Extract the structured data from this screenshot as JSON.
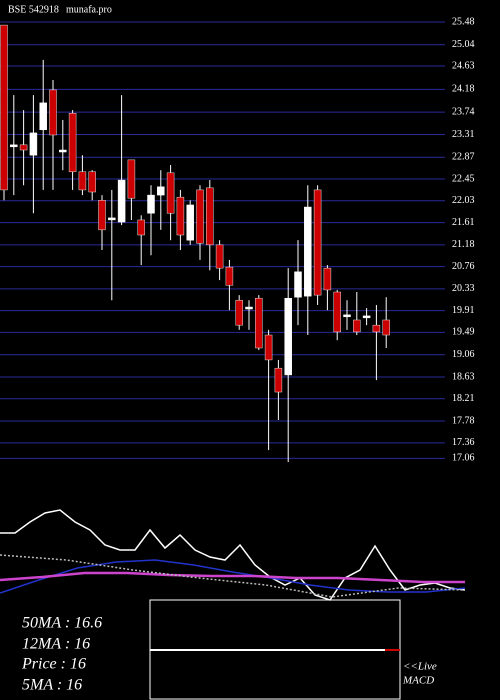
{
  "header": {
    "title": "BSE 542918",
    "site": "munafa.pro"
  },
  "chart_data": [
    {
      "type": "candlestick",
      "ylim": [
        16.99,
        25.48
      ],
      "yticks": [
        25.48,
        25.04,
        24.63,
        24.18,
        23.74,
        23.31,
        22.87,
        22.45,
        22.03,
        21.61,
        21.18,
        20.76,
        20.33,
        19.91,
        19.49,
        19.06,
        18.63,
        18.21,
        17.78,
        17.36,
        17.06
      ],
      "grid": true,
      "up_color": "#ffffff",
      "down_color": "#cc0000",
      "grid_color": "#2a2a9a",
      "open": [
        25.42,
        23.11,
        23.11,
        22.91,
        23.4,
        24.17,
        23.01,
        23.72,
        22.59,
        22.59,
        22.04,
        21.7,
        21.62,
        22.82,
        21.66,
        21.79,
        22.14,
        22.57,
        22.1,
        21.27,
        22.24,
        22.28,
        21.18,
        20.75,
        20.11,
        19.98,
        20.15,
        19.44,
        18.8,
        18.67,
        20.17,
        20.19,
        22.24,
        20.73,
        20.27,
        19.83,
        19.73,
        19.81,
        19.63,
        19.73
      ],
      "high": [
        25.42,
        24.07,
        23.78,
        24.07,
        24.75,
        24.36,
        23.59,
        23.78,
        22.91,
        22.62,
        22.14,
        22.24,
        24.07,
        22.82,
        21.75,
        22.33,
        22.62,
        22.72,
        22.24,
        22.04,
        22.33,
        22.43,
        21.27,
        20.89,
        20.21,
        20.11,
        20.21,
        19.54,
        18.96,
        20.73,
        21.27,
        22.33,
        22.33,
        20.79,
        20.31,
        20.11,
        20.27,
        19.96,
        20.02,
        20.17
      ],
      "low": [
        22.04,
        22.14,
        22.33,
        21.79,
        22.24,
        22.24,
        22.62,
        22.24,
        22.14,
        22.04,
        21.08,
        20.11,
        21.56,
        21.66,
        20.79,
        20.98,
        21.47,
        21.27,
        21.08,
        21.18,
        20.89,
        20.69,
        20.5,
        19.92,
        19.54,
        19.54,
        19.15,
        17.22,
        17.8,
        16.99,
        19.63,
        19.44,
        20.02,
        19.92,
        19.34,
        19.54,
        19.44,
        19.63,
        18.57,
        19.19
      ],
      "close": [
        22.24,
        23.11,
        23.01,
        23.34,
        23.92,
        23.3,
        23.01,
        22.59,
        22.24,
        22.2,
        21.47,
        21.7,
        22.43,
        22.08,
        21.37,
        22.14,
        22.3,
        21.79,
        21.37,
        21.95,
        21.21,
        21.18,
        20.73,
        20.4,
        19.63,
        19.98,
        19.19,
        18.96,
        18.34,
        20.15,
        20.66,
        21.91,
        20.21,
        20.31,
        19.5,
        19.83,
        19.5,
        19.81,
        19.5,
        19.44
      ]
    },
    {
      "type": "line",
      "ylim": [
        0,
        100
      ],
      "series": [
        {
          "color": "#ffffff",
          "values": [
            67,
            67,
            78,
            87,
            90,
            78,
            70,
            55,
            50,
            50,
            70,
            52,
            65,
            50,
            43,
            40,
            55,
            35,
            23,
            15,
            22,
            5,
            0,
            22,
            30,
            54,
            30,
            10,
            15,
            17,
            12,
            10
          ]
        },
        {
          "color": "#2233cc",
          "values": [
            7,
            20,
            32,
            38,
            40,
            35,
            28,
            22,
            15,
            10,
            8,
            8,
            12
          ]
        },
        {
          "color": "#cc44cc",
          "values": [
            20,
            23,
            27,
            27,
            25,
            24,
            24,
            22,
            22,
            20,
            18,
            18
          ]
        },
        {
          "color": "#bbbbbb",
          "dashed": true,
          "values": [
            45,
            40,
            30,
            22,
            15,
            3,
            12,
            10
          ]
        }
      ]
    }
  ],
  "info": [
    "50MA : 16.6",
    "12MA : 16",
    "Price   : 16",
    "5MA : 16"
  ],
  "live": "<<Live",
  "macd": "MACD"
}
